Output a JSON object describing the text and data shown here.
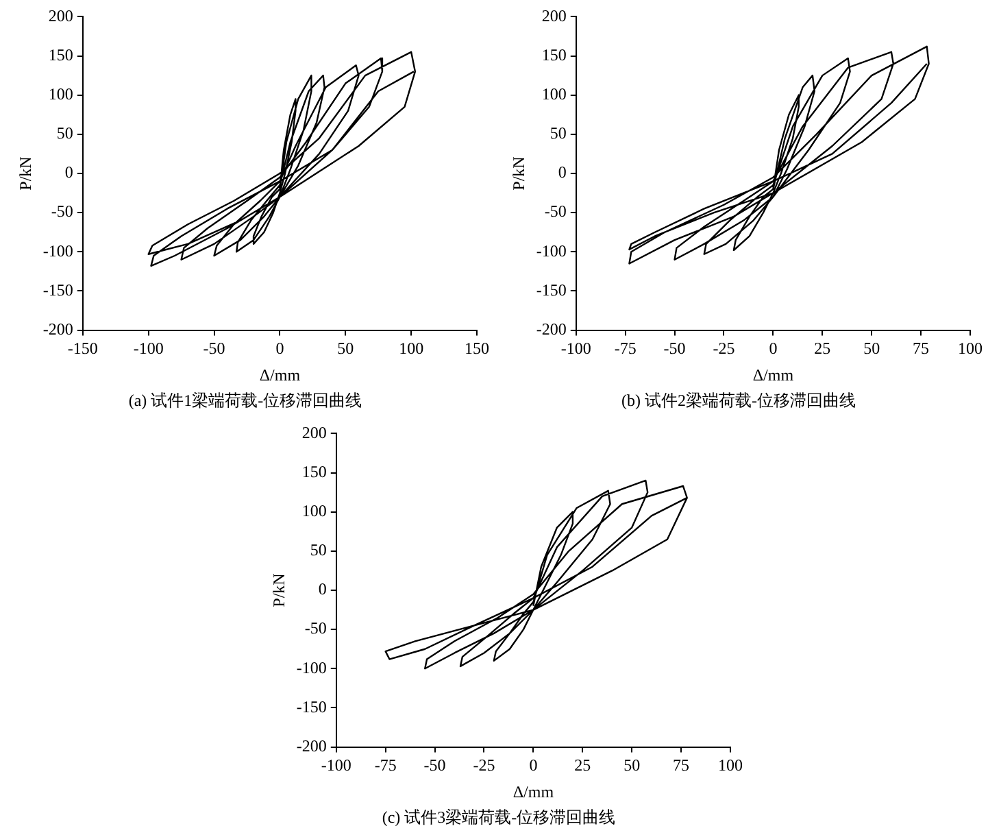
{
  "chart_data": [
    {
      "type": "line",
      "title": "(a) 试件1梁端荷载-位移滞回曲线",
      "xlabel": "Δ/mm",
      "ylabel": "P/kN",
      "xlim": [
        -150,
        150
      ],
      "xticks": [
        -150,
        -100,
        -50,
        0,
        50,
        100,
        150
      ],
      "ylim": [
        -200,
        200
      ],
      "yticks": [
        -200,
        -150,
        -100,
        -50,
        0,
        50,
        100,
        150,
        200
      ],
      "grid": false,
      "legend": false,
      "marker": "none",
      "line_style": "solid",
      "series": [
        {
          "color": "#000000",
          "x": [
            0,
            3,
            8,
            12,
            12,
            9,
            4,
            0,
            -5,
            -12,
            -20,
            -20,
            -14,
            -6,
            0,
            5,
            14,
            24,
            24,
            18,
            8,
            0,
            -8,
            -20,
            -33,
            -32,
            -22,
            -10,
            0,
            8,
            22,
            33,
            34,
            28,
            14,
            0,
            -12,
            -30,
            -50,
            -48,
            -35,
            -15,
            0,
            12,
            35,
            58,
            60,
            52,
            30,
            0,
            -20,
            -50,
            -75,
            -73,
            -55,
            -25,
            0,
            20,
            50,
            77,
            78,
            68,
            40,
            0,
            -30,
            -70,
            -100,
            -97,
            -70,
            -35,
            0,
            30,
            65,
            100,
            103,
            95,
            60,
            0,
            -40,
            -80,
            -98,
            -96,
            -75,
            -40,
            0,
            40,
            75,
            102
          ],
          "values": [
            -20,
            30,
            75,
            95,
            80,
            40,
            0,
            -25,
            -50,
            -75,
            -90,
            -80,
            -55,
            -30,
            -20,
            40,
            95,
            125,
            105,
            55,
            5,
            -30,
            -55,
            -85,
            -100,
            -88,
            -60,
            -35,
            -15,
            40,
            105,
            125,
            110,
            65,
            10,
            -30,
            -55,
            -85,
            -105,
            -92,
            -65,
            -35,
            -10,
            35,
            110,
            138,
            125,
            80,
            25,
            -30,
            -55,
            -90,
            -110,
            -95,
            -70,
            -35,
            -5,
            40,
            115,
            147,
            130,
            85,
            30,
            -30,
            -60,
            -90,
            -103,
            -92,
            -65,
            -35,
            0,
            45,
            125,
            155,
            130,
            85,
            35,
            -30,
            -70,
            -105,
            -118,
            -105,
            -80,
            -45,
            -10,
            30,
            105,
            130
          ]
        }
      ]
    },
    {
      "type": "line",
      "title": "(b) 试件2梁端荷载-位移滞回曲线",
      "xlabel": "Δ/mm",
      "ylabel": "P/kN",
      "xlim": [
        -100,
        100
      ],
      "xticks": [
        -100,
        -75,
        -50,
        -25,
        0,
        25,
        50,
        75,
        100
      ],
      "ylim": [
        -200,
        200
      ],
      "yticks": [
        -200,
        -150,
        -100,
        -50,
        0,
        50,
        100,
        150,
        200
      ],
      "grid": false,
      "legend": false,
      "marker": "none",
      "line_style": "solid",
      "series": [
        {
          "color": "#000000",
          "x": [
            0,
            3,
            8,
            13,
            13,
            10,
            4,
            0,
            -5,
            -12,
            -20,
            -19,
            -12,
            -5,
            0,
            6,
            15,
            20,
            21,
            16,
            7,
            0,
            -10,
            -24,
            -35,
            -34,
            -22,
            -8,
            0,
            10,
            25,
            38,
            39,
            34,
            18,
            0,
            -15,
            -35,
            -50,
            -49,
            -35,
            -15,
            0,
            15,
            38,
            60,
            61,
            55,
            30,
            0,
            -20,
            -50,
            -73,
            -72,
            -55,
            -25,
            0,
            22,
            50,
            78,
            79,
            72,
            45,
            0,
            -30,
            -60,
            -73,
            -72,
            -60,
            -35,
            0,
            30,
            60,
            78
          ],
          "values": [
            -20,
            30,
            75,
            100,
            85,
            45,
            0,
            -25,
            -50,
            -80,
            -98,
            -85,
            -55,
            -30,
            -20,
            45,
            110,
            125,
            105,
            60,
            5,
            -30,
            -60,
            -90,
            -103,
            -90,
            -60,
            -30,
            -15,
            60,
            125,
            147,
            130,
            90,
            30,
            -30,
            -60,
            -90,
            -110,
            -95,
            -68,
            -35,
            -10,
            60,
            135,
            155,
            140,
            95,
            35,
            -25,
            -55,
            -85,
            -115,
            -100,
            -75,
            -40,
            -5,
            50,
            125,
            162,
            140,
            95,
            40,
            -25,
            -50,
            -80,
            -97,
            -90,
            -75,
            -45,
            -10,
            25,
            90,
            140
          ]
        }
      ]
    },
    {
      "type": "line",
      "title": "(c) 试件3梁端荷载-位移滞回曲线",
      "xlabel": "Δ/mm",
      "ylabel": "P/kN",
      "xlim": [
        -100,
        100
      ],
      "xticks": [
        -100,
        -75,
        -50,
        -25,
        0,
        25,
        50,
        75,
        100
      ],
      "ylim": [
        -200,
        200
      ],
      "yticks": [
        -200,
        -150,
        -100,
        -50,
        0,
        50,
        100,
        150,
        200
      ],
      "grid": false,
      "legend": false,
      "marker": "none",
      "line_style": "solid",
      "series": [
        {
          "color": "#000000",
          "x": [
            0,
            4,
            12,
            20,
            20,
            14,
            5,
            0,
            -5,
            -12,
            -20,
            -19,
            -12,
            -5,
            0,
            7,
            22,
            38,
            39,
            30,
            12,
            0,
            -12,
            -25,
            -37,
            -36,
            -24,
            -10,
            0,
            12,
            35,
            57,
            58,
            50,
            25,
            0,
            -20,
            -40,
            -55,
            -54,
            -40,
            -18,
            0,
            18,
            45,
            76,
            78,
            68,
            40,
            0,
            -30,
            -60,
            -75,
            -73,
            -55,
            -30,
            0,
            30,
            60,
            78
          ],
          "values": [
            -20,
            30,
            80,
            100,
            85,
            45,
            0,
            -25,
            -50,
            -75,
            -90,
            -78,
            -55,
            -30,
            -15,
            45,
            105,
            127,
            110,
            65,
            10,
            -25,
            -55,
            -80,
            -97,
            -85,
            -60,
            -30,
            -10,
            55,
            120,
            140,
            125,
            80,
            25,
            -25,
            -55,
            -80,
            -100,
            -88,
            -65,
            -35,
            -5,
            50,
            110,
            133,
            118,
            65,
            25,
            -25,
            -45,
            -65,
            -78,
            -88,
            -75,
            -45,
            -10,
            30,
            95,
            118
          ]
        }
      ]
    }
  ]
}
